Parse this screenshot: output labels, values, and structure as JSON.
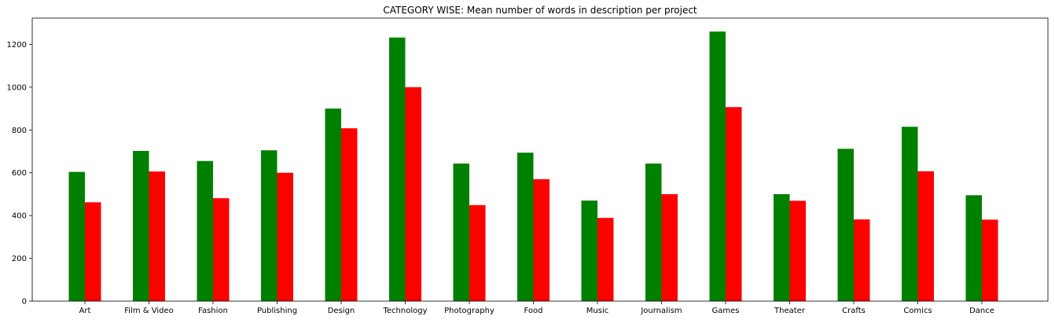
{
  "chart_data": {
    "type": "bar",
    "title": "CATEGORY WISE: Mean number of words in description per project",
    "xlabel": "",
    "ylabel": "",
    "categories": [
      "Art",
      "Film & Video",
      "Fashion",
      "Publishing",
      "Design",
      "Technology",
      "Photography",
      "Food",
      "Music",
      "Journalism",
      "Games",
      "Theater",
      "Crafts",
      "Comics",
      "Dance"
    ],
    "series": [
      {
        "color": "#008000",
        "values": [
          604,
          702,
          655,
          705,
          900,
          1232,
          643,
          694,
          470,
          643,
          1260,
          500,
          712,
          815,
          495
        ]
      },
      {
        "color": "#ff0000",
        "values": [
          462,
          606,
          481,
          600,
          808,
          1000,
          449,
          570,
          389,
          500,
          907,
          469,
          382,
          607,
          381
        ]
      }
    ],
    "yticks": [
      0,
      200,
      400,
      600,
      800,
      1000,
      1200
    ],
    "ylim": [
      0,
      1323
    ],
    "grid": false,
    "legend": "none"
  }
}
